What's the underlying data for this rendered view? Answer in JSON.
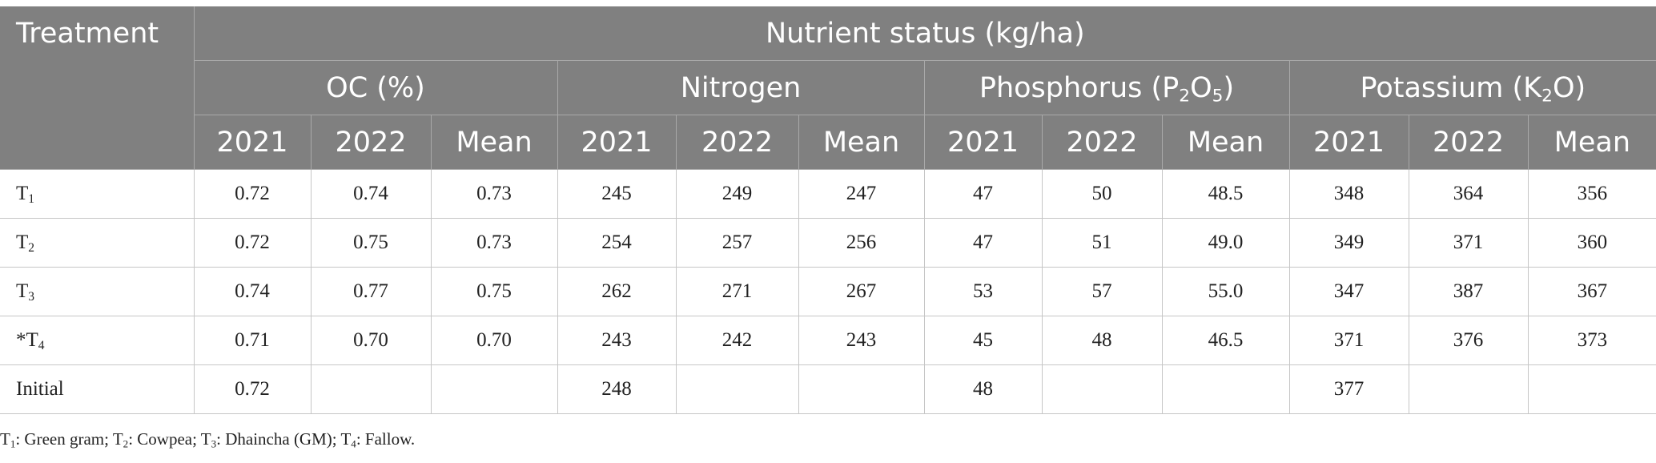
{
  "header": {
    "treatment": "Treatment",
    "nutrient_status": "Nutrient status (kg/ha)",
    "groups": {
      "oc": "OC (%)",
      "nitrogen": "Nitrogen",
      "phosphorus": "Phosphorus (P",
      "phosphorus_sub1": "2",
      "phosphorus_mid": "O",
      "phosphorus_sub2": "5",
      "phosphorus_end": ")",
      "potassium": "Potassium (K",
      "potassium_sub": "2",
      "potassium_mid": "O)"
    },
    "years": [
      "2021",
      "2022",
      "Mean"
    ]
  },
  "rows": [
    {
      "prefix": "T",
      "sub": "1",
      "oc": [
        "0.72",
        "0.74",
        "0.73"
      ],
      "n": [
        "245",
        "249",
        "247"
      ],
      "p": [
        "47",
        "50",
        "48.5"
      ],
      "k": [
        "348",
        "364",
        "356"
      ]
    },
    {
      "prefix": "T",
      "sub": "2",
      "oc": [
        "0.72",
        "0.75",
        "0.73"
      ],
      "n": [
        "254",
        "257",
        "256"
      ],
      "p": [
        "47",
        "51",
        "49.0"
      ],
      "k": [
        "349",
        "371",
        "360"
      ]
    },
    {
      "prefix": "T",
      "sub": "3",
      "oc": [
        "0.74",
        "0.77",
        "0.75"
      ],
      "n": [
        "262",
        "271",
        "267"
      ],
      "p": [
        "53",
        "57",
        "55.0"
      ],
      "k": [
        "347",
        "387",
        "367"
      ]
    },
    {
      "prefix": "*T",
      "sub": "4",
      "oc": [
        "0.71",
        "0.70",
        "0.70"
      ],
      "n": [
        "243",
        "242",
        "243"
      ],
      "p": [
        "45",
        "48",
        "46.5"
      ],
      "k": [
        "371",
        "376",
        "373"
      ]
    },
    {
      "prefix": "Initial",
      "sub": "",
      "oc": [
        "0.72",
        "",
        ""
      ],
      "n": [
        "248",
        "",
        ""
      ],
      "p": [
        "48",
        "",
        ""
      ],
      "k": [
        "377",
        "",
        ""
      ]
    }
  ],
  "footnote": {
    "t1": "T",
    "t1_sub": "1",
    "t1_text": ": Green gram; ",
    "t2": "T",
    "t2_sub": "2",
    "t2_text": ": Cowpea; ",
    "t3": "T",
    "t3_sub": "3",
    "t3_text": ": Dhaincha (GM); ",
    "t4": "T",
    "t4_sub": "4",
    "t4_text": ": Fallow."
  },
  "colors": {
    "header_bg": "#808080",
    "header_text": "#ffffff",
    "grid": "#c6c6c6"
  }
}
